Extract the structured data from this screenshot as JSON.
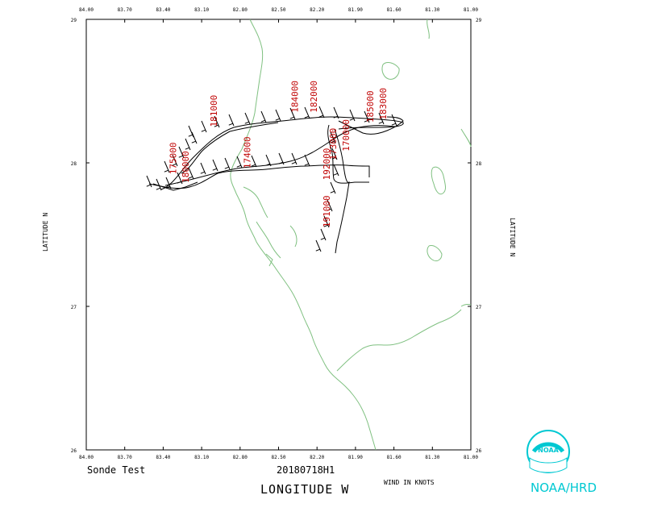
{
  "plot": {
    "lon_min": 84.0,
    "lon_max": 81.0,
    "lat_min": 26,
    "lat_max": 29,
    "lon_ticks": [
      "84.00",
      "83.70",
      "83.40",
      "83.10",
      "82.80",
      "82.50",
      "82.20",
      "81.90",
      "81.60",
      "81.30",
      "81.00"
    ],
    "lat_ticks": [
      "29",
      "28",
      "27",
      "26"
    ]
  },
  "labels": {
    "lat_axis": "LATITUDE  N",
    "lon_axis": "LONGITUDE  W",
    "left_caption": "Sonde Test",
    "center_caption": "20180718H1",
    "wind_caption": "WIND IN KNOTS",
    "org": "NOAA/HRD",
    "logo_text": "NOAA"
  },
  "time_labels": [
    {
      "text": "175000",
      "lon": 83.3,
      "lat": 27.92
    },
    {
      "text": "180000",
      "lon": 83.2,
      "lat": 27.86
    },
    {
      "text": "181000",
      "lon": 82.98,
      "lat": 28.25
    },
    {
      "text": "174000",
      "lon": 82.72,
      "lat": 27.96
    },
    {
      "text": "184000",
      "lon": 82.35,
      "lat": 28.35
    },
    {
      "text": "182000",
      "lon": 82.2,
      "lat": 28.35
    },
    {
      "text": "173000",
      "lon": 82.05,
      "lat": 28.02
    },
    {
      "text": "170000",
      "lon": 81.95,
      "lat": 28.08
    },
    {
      "text": "185000",
      "lon": 81.76,
      "lat": 28.28
    },
    {
      "text": "183000",
      "lon": 81.66,
      "lat": 28.3
    },
    {
      "text": "192000",
      "lon": 82.1,
      "lat": 27.88
    },
    {
      "text": "191000",
      "lon": 82.1,
      "lat": 27.55
    }
  ],
  "colors": {
    "coast": "#7fc080",
    "track": "#000000",
    "time_label": "#c00000",
    "org": "#00c8d2"
  }
}
